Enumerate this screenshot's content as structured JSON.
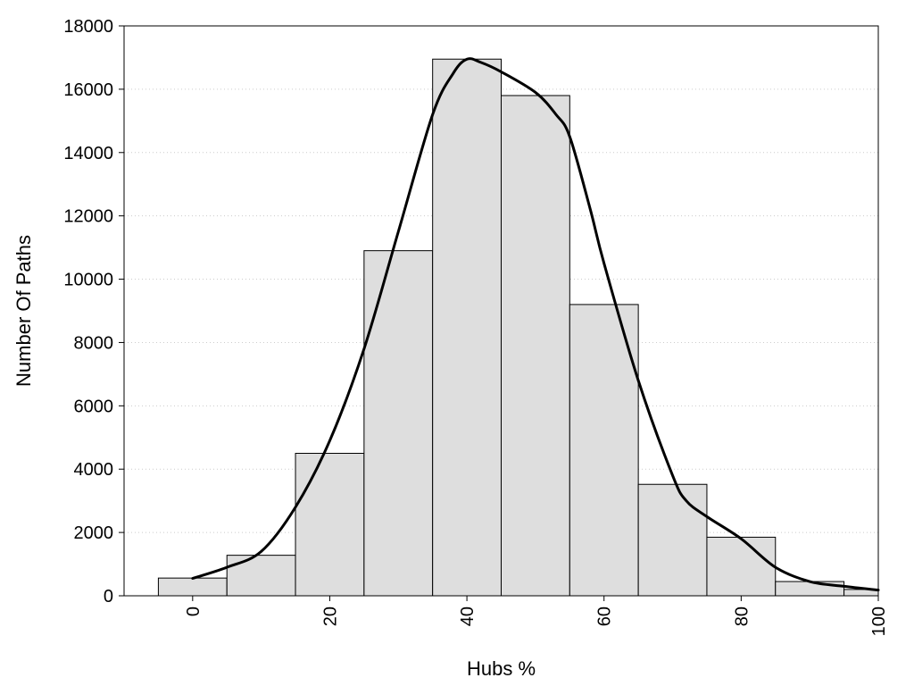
{
  "chart_data": {
    "type": "bar",
    "xlabel": "Hubs %",
    "ylabel": "Number Of Paths",
    "xlim": [
      -10,
      100
    ],
    "ylim": [
      0,
      18000
    ],
    "bin_width": 10,
    "bins": [
      {
        "center": 0,
        "value": 560
      },
      {
        "center": 10,
        "value": 1280
      },
      {
        "center": 20,
        "value": 4500
      },
      {
        "center": 30,
        "value": 10900
      },
      {
        "center": 40,
        "value": 16950
      },
      {
        "center": 50,
        "value": 15800
      },
      {
        "center": 60,
        "value": 9200
      },
      {
        "center": 70,
        "value": 3520
      },
      {
        "center": 80,
        "value": 1850
      },
      {
        "center": 90,
        "value": 450
      },
      {
        "center": 100,
        "value": 200
      }
    ],
    "curve": {
      "x": [
        0,
        5,
        10,
        15,
        20,
        25,
        30,
        35,
        38,
        40,
        42,
        45,
        50,
        53,
        55,
        58,
        60,
        65,
        70,
        72,
        75,
        80,
        85,
        90,
        95,
        100
      ],
      "y": [
        550,
        900,
        1400,
        2800,
        4900,
        7800,
        11500,
        15200,
        16500,
        16950,
        16850,
        16550,
        15900,
        15200,
        14500,
        12200,
        10500,
        6800,
        3800,
        3000,
        2500,
        1800,
        900,
        450,
        300,
        180
      ]
    },
    "yticks": [
      0,
      2000,
      4000,
      6000,
      8000,
      10000,
      12000,
      14000,
      16000,
      18000
    ],
    "xticks": [
      0,
      20,
      40,
      60,
      80,
      100
    ],
    "grid": "horizontal-dotted",
    "colors": {
      "bar_fill": "#dedede",
      "bar_stroke": "#000000",
      "curve": "#000000",
      "grid": "#cccccc"
    }
  }
}
